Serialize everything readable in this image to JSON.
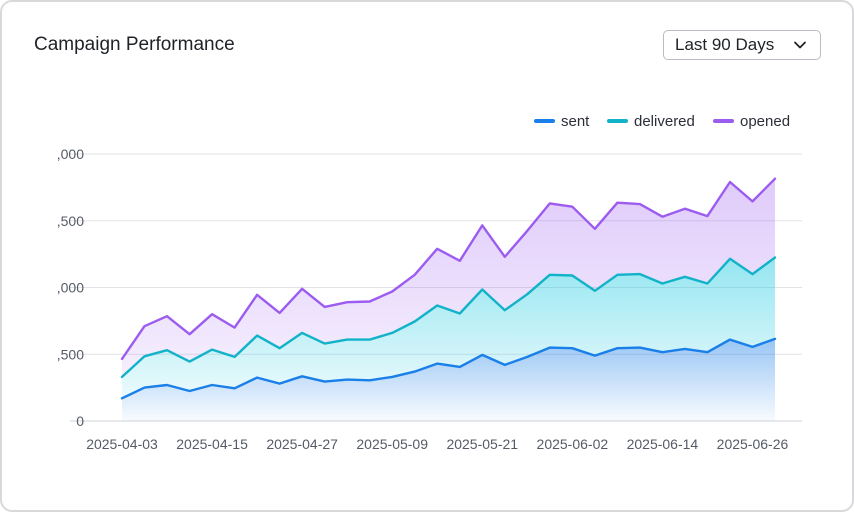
{
  "header": {
    "title": "Campaign Performance",
    "range_label": "Last 90 Days"
  },
  "chart_data": {
    "type": "area",
    "stacked": true,
    "x": [
      "2025-04-03",
      "2025-04-06",
      "2025-04-09",
      "2025-04-12",
      "2025-04-15",
      "2025-04-18",
      "2025-04-21",
      "2025-04-24",
      "2025-04-27",
      "2025-04-30",
      "2025-05-03",
      "2025-05-06",
      "2025-05-09",
      "2025-05-12",
      "2025-05-15",
      "2025-05-18",
      "2025-05-21",
      "2025-05-24",
      "2025-05-27",
      "2025-05-30",
      "2025-06-02",
      "2025-06-05",
      "2025-06-08",
      "2025-06-11",
      "2025-06-14",
      "2025-06-17",
      "2025-06-20",
      "2025-06-23",
      "2025-06-26",
      "2025-06-29"
    ],
    "x_ticks": [
      "2025-04-03",
      "2025-04-15",
      "2025-04-27",
      "2025-05-09",
      "2025-05-21",
      "2025-06-02",
      "2025-06-14",
      "2025-06-26"
    ],
    "y_ticks": [
      "0",
      ",500",
      ",000",
      ",500",
      ",000"
    ],
    "ylim": [
      0,
      2000
    ],
    "legend": "top-right",
    "grid": true,
    "series": [
      {
        "name": "sent",
        "color": "#1a7fe8",
        "values": [
          170,
          250,
          270,
          225,
          270,
          245,
          325,
          280,
          335,
          295,
          310,
          305,
          330,
          370,
          430,
          405,
          495,
          420,
          480,
          550,
          545,
          490,
          545,
          550,
          515,
          540,
          515,
          610,
          555,
          615
        ]
      },
      {
        "name": "delivered",
        "color": "#12b3c9",
        "values": [
          160,
          235,
          260,
          220,
          265,
          235,
          315,
          265,
          325,
          285,
          300,
          305,
          330,
          375,
          435,
          400,
          490,
          410,
          470,
          545,
          545,
          485,
          550,
          550,
          515,
          540,
          515,
          605,
          545,
          610
        ]
      },
      {
        "name": "opened",
        "color": "#9c5cf0",
        "values": [
          135,
          225,
          255,
          205,
          265,
          220,
          305,
          265,
          330,
          275,
          280,
          285,
          310,
          350,
          425,
          395,
          480,
          400,
          475,
          535,
          515,
          465,
          540,
          525,
          500,
          510,
          505,
          575,
          545,
          590
        ]
      }
    ]
  }
}
